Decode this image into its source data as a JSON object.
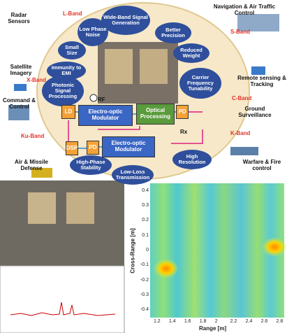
{
  "diagram": {
    "benefits": [
      "Wide-Band Signal Generation",
      "Low Phase Noise",
      "Better Precision",
      "Small Size",
      "Reduced Weight",
      "Immunity to EMI",
      "Photonic Signal Processing",
      "Carrier Frequency Tunability",
      "High Resolution",
      "High-Phase Stability",
      "Low-Loss Transmission"
    ],
    "blocks": [
      "LD",
      "Electro-optic Modulator",
      "Optical Processing",
      "PD",
      "Electro-optic Modulator",
      "PD",
      "DSP"
    ],
    "signals": [
      "RF",
      "Rx"
    ],
    "applications": [
      "Radar Sensors",
      "Satellite Imagery",
      "Command & Control",
      "Air & Missile Defense",
      "Navigation & Air Traffic Control",
      "Remote sensing & Tracking",
      "Ground Surveillance",
      "Warfare & Fire control"
    ],
    "bands": [
      "L-Band",
      "X-Band",
      "Ku-Band",
      "S-Band",
      "C-Band",
      "K-Band"
    ]
  },
  "heatmap": {
    "xlabel": "Range [m]",
    "ylabel": "Cross-Range [m]",
    "xticks": [
      1.2,
      1.4,
      1.6,
      1.8,
      2,
      2.2,
      2.4,
      2.6,
      2.8
    ],
    "yticks": [
      0.4,
      0.3,
      0.2,
      0.1,
      0,
      -0.1,
      -0.2,
      -0.3,
      -0.4
    ]
  }
}
